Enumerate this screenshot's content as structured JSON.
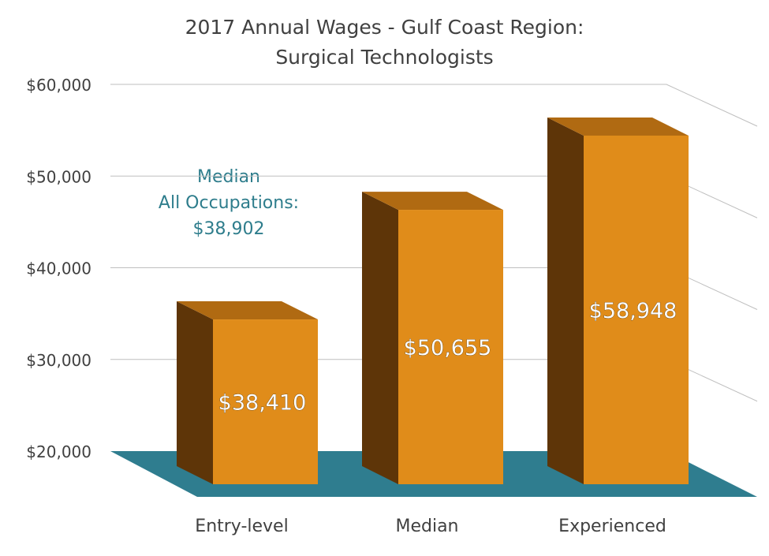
{
  "chart_data": {
    "type": "bar",
    "title": [
      "2017 Annual Wages - Gulf Coast Region:",
      "Surgical Technologists"
    ],
    "categories": [
      "Entry-level",
      "Median",
      "Experienced"
    ],
    "values": [
      38410,
      50655,
      58948
    ],
    "data_labels": [
      "$38,410",
      "$50,655",
      "$58,948"
    ],
    "ylim": [
      20000,
      60000
    ],
    "yticks": [
      20000,
      30000,
      40000,
      50000,
      60000
    ],
    "ytick_labels": [
      "$20,000",
      "$30,000",
      "$40,000",
      "$50,000",
      "$60,000"
    ],
    "grid": true,
    "three_d": true,
    "annotation": [
      "Median",
      "All Occupations:",
      "$38,902"
    ],
    "colors": {
      "bar_front": "#e08c1a",
      "bar_side": "#5e3508",
      "bar_top": "#b06a12",
      "floor": "#2f7d8f",
      "gridline": "#bfbfbf",
      "text": "#404040",
      "annotation": "#2e7d8c",
      "data_label": "#ffffff"
    }
  }
}
